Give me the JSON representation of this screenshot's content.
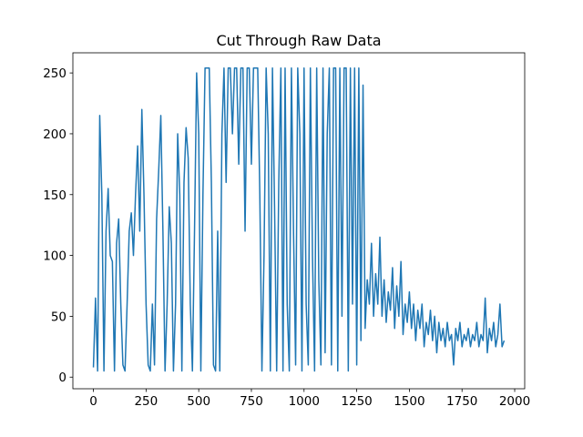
{
  "chart_data": {
    "type": "line",
    "title": "Cut Through Raw Data",
    "color": "#1f77b4",
    "x": [
      0,
      10,
      20,
      30,
      40,
      50,
      60,
      70,
      80,
      90,
      100,
      110,
      120,
      130,
      140,
      150,
      160,
      170,
      180,
      190,
      200,
      210,
      220,
      230,
      240,
      250,
      260,
      270,
      280,
      290,
      300,
      310,
      320,
      330,
      340,
      350,
      360,
      370,
      380,
      390,
      400,
      410,
      420,
      430,
      440,
      450,
      460,
      470,
      480,
      490,
      500,
      510,
      520,
      530,
      540,
      550,
      560,
      570,
      580,
      590,
      600,
      610,
      620,
      630,
      640,
      650,
      660,
      670,
      680,
      690,
      700,
      710,
      720,
      730,
      740,
      750,
      760,
      770,
      780,
      790,
      800,
      810,
      820,
      830,
      840,
      850,
      860,
      870,
      880,
      890,
      900,
      910,
      920,
      930,
      940,
      950,
      960,
      970,
      980,
      990,
      1000,
      1010,
      1020,
      1030,
      1040,
      1050,
      1060,
      1070,
      1080,
      1090,
      1100,
      1110,
      1120,
      1130,
      1140,
      1150,
      1160,
      1170,
      1180,
      1190,
      1200,
      1210,
      1220,
      1230,
      1240,
      1250,
      1260,
      1270,
      1280,
      1290,
      1300,
      1310,
      1320,
      1330,
      1340,
      1350,
      1360,
      1370,
      1380,
      1390,
      1400,
      1410,
      1420,
      1430,
      1440,
      1450,
      1460,
      1470,
      1480,
      1490,
      1500,
      1510,
      1520,
      1530,
      1540,
      1550,
      1560,
      1570,
      1580,
      1590,
      1600,
      1610,
      1620,
      1630,
      1640,
      1650,
      1660,
      1670,
      1680,
      1690,
      1700,
      1710,
      1720,
      1730,
      1740,
      1750,
      1760,
      1770,
      1780,
      1790,
      1800,
      1810,
      1820,
      1830,
      1840,
      1850,
      1860,
      1870,
      1880,
      1890,
      1900,
      1910,
      1920,
      1930,
      1940,
      1950
    ],
    "values": [
      8,
      65,
      5,
      215,
      150,
      5,
      120,
      155,
      100,
      95,
      5,
      110,
      130,
      60,
      10,
      5,
      60,
      120,
      135,
      100,
      150,
      190,
      120,
      220,
      150,
      60,
      10,
      5,
      60,
      10,
      130,
      170,
      215,
      120,
      5,
      60,
      140,
      110,
      5,
      60,
      200,
      150,
      5,
      160,
      205,
      180,
      60,
      5,
      120,
      250,
      200,
      5,
      150,
      254,
      254,
      254,
      160,
      10,
      5,
      120,
      5,
      200,
      254,
      160,
      254,
      254,
      200,
      254,
      254,
      175,
      254,
      254,
      120,
      254,
      254,
      175,
      254,
      254,
      254,
      150,
      5,
      100,
      254,
      200,
      5,
      254,
      140,
      5,
      160,
      254,
      5,
      254,
      60,
      5,
      254,
      120,
      10,
      254,
      200,
      5,
      254,
      60,
      10,
      254,
      100,
      5,
      254,
      80,
      10,
      254,
      20,
      200,
      254,
      10,
      254,
      254,
      5,
      254,
      50,
      254,
      254,
      5,
      254,
      60,
      254,
      10,
      254,
      30,
      240,
      40,
      80,
      60,
      110,
      50,
      85,
      60,
      115,
      50,
      80,
      45,
      70,
      55,
      90,
      40,
      75,
      50,
      95,
      35,
      60,
      45,
      70,
      40,
      60,
      30,
      55,
      40,
      60,
      25,
      45,
      35,
      55,
      30,
      50,
      20,
      45,
      30,
      40,
      25,
      45,
      30,
      35,
      10,
      40,
      30,
      45,
      25,
      35,
      30,
      40,
      25,
      35,
      30,
      45,
      25,
      35,
      30,
      65,
      20,
      40,
      30,
      45,
      25,
      35,
      60,
      25,
      30
    ],
    "xlim": [
      -97.5,
      2047.5
    ],
    "ylim": [
      -9.55,
      266.55
    ],
    "xticks": [
      0,
      250,
      500,
      750,
      1000,
      1250,
      1500,
      1750,
      2000
    ],
    "yticks": [
      0,
      50,
      100,
      150,
      200,
      250
    ]
  }
}
